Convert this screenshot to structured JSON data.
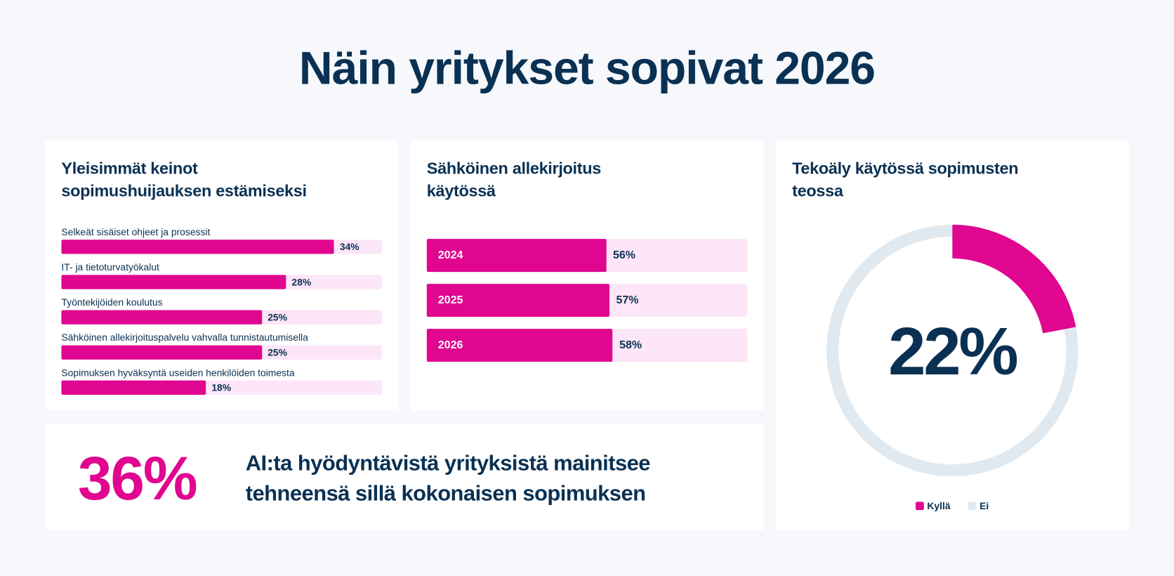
{
  "title": "Näin yritykset sopivat 2026",
  "colors": {
    "accent": "#e0068f",
    "accent_light": "#fce6f7",
    "neutral": "#e1e9f0",
    "text": "#0a3153"
  },
  "chart_data": [
    {
      "type": "bar",
      "orientation": "horizontal",
      "title_lines": [
        "Yleisimmät keinot",
        "sopimushuijauksen estämiseksi"
      ],
      "categories": [
        "Selkeät sisäiset ohjeet ja prosessit",
        "IT- ja tietoturvatyökalut",
        "Työntekijöiden koulutus",
        "Sähköinen allekirjoituspalvelu vahvalla tunnistautumisella",
        "Sopimuksen hyväksyntä useiden henkilöiden toimesta"
      ],
      "values": [
        34,
        28,
        25,
        25,
        18
      ],
      "labels": [
        "34%",
        "28%",
        "25%",
        "25%",
        "18%"
      ],
      "xlim": [
        0,
        40
      ]
    },
    {
      "type": "bar",
      "orientation": "horizontal",
      "title_lines": [
        "Sähköinen allekirjoitus",
        "käytössä"
      ],
      "categories": [
        "2024",
        "2025",
        "2026"
      ],
      "values": [
        56,
        57,
        58
      ],
      "labels": [
        "56%",
        "57%",
        "58%"
      ],
      "xlim": [
        0,
        100
      ]
    },
    {
      "type": "pie",
      "donut": true,
      "title_lines": [
        "Tekoäly käytössä sopimusten",
        "teossa"
      ],
      "center_label": "22%",
      "slices": [
        {
          "name": "Kyllä",
          "value": 22
        },
        {
          "name": "Ei",
          "value": 78
        }
      ],
      "legend": [
        "Kyllä",
        "Ei"
      ],
      "legend_position": "bottom"
    }
  ],
  "highlight": {
    "value": "36%",
    "lines": [
      "AI:ta hyödyntävistä yrityksistä mainitsee",
      "tehneensä sillä kokonaisen sopimuksen"
    ]
  }
}
